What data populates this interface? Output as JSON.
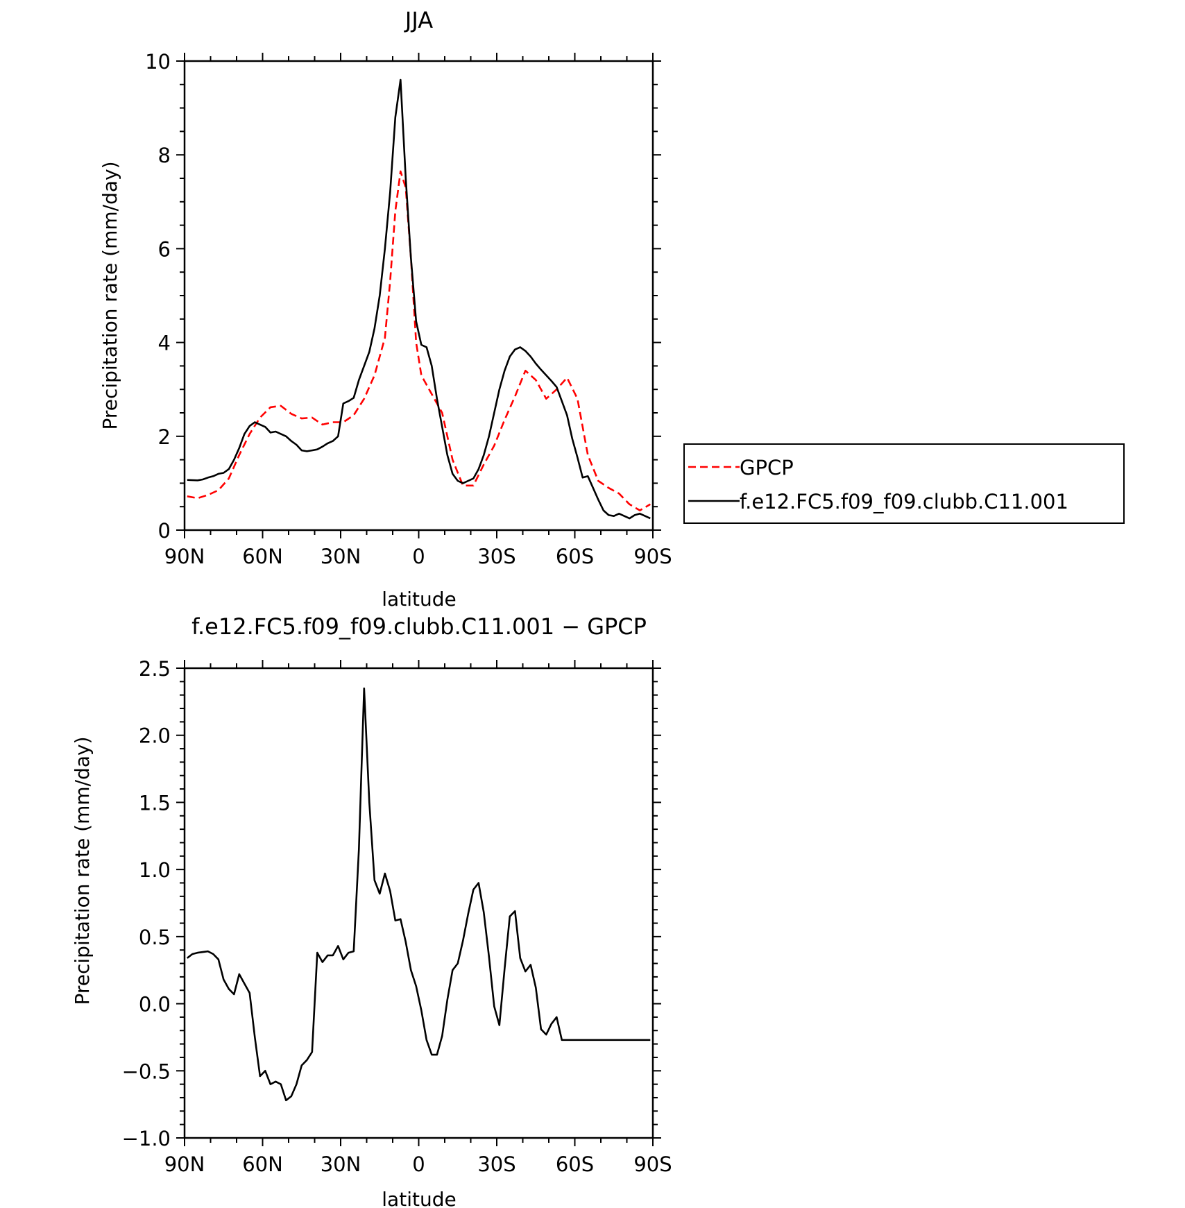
{
  "chart_data": [
    {
      "type": "line",
      "title": "JJA",
      "xlabel": "latitude",
      "ylabel": "Precipitation rate (mm/day)",
      "xlim": [
        -90,
        90
      ],
      "ylim": [
        0,
        10
      ],
      "xticks": [
        {
          "value": -90,
          "label": "90N"
        },
        {
          "value": -60,
          "label": "60N"
        },
        {
          "value": -30,
          "label": "30N"
        },
        {
          "value": 0,
          "label": "0"
        },
        {
          "value": 30,
          "label": "30S"
        },
        {
          "value": 60,
          "label": "60S"
        },
        {
          "value": 90,
          "label": "90S"
        }
      ],
      "yticks": [
        {
          "value": 0,
          "label": "0"
        },
        {
          "value": 2,
          "label": "2"
        },
        {
          "value": 4,
          "label": "4"
        },
        {
          "value": 6,
          "label": "6"
        },
        {
          "value": 8,
          "label": "8"
        },
        {
          "value": 10,
          "label": "10"
        }
      ],
      "grid": false,
      "legend": "right",
      "series": [
        {
          "name": "GPCP",
          "color": "#ff0000",
          "style": "dashed",
          "x": [
            -89,
            -85,
            -81,
            -77,
            -73,
            -69,
            -65,
            -61,
            -57,
            -53,
            -49,
            -45,
            -41,
            -37,
            -33,
            -29,
            -25,
            -21,
            -17,
            -13,
            -11,
            -9,
            -7,
            -5,
            -3,
            -1,
            1,
            5,
            9,
            13,
            17,
            21,
            25,
            29,
            33,
            37,
            41,
            45,
            49,
            53,
            57,
            61,
            65,
            69,
            73,
            77,
            81,
            85,
            89
          ],
          "y": [
            0.72,
            0.68,
            0.75,
            0.85,
            1.1,
            1.6,
            2.05,
            2.4,
            2.62,
            2.65,
            2.48,
            2.38,
            2.4,
            2.25,
            2.3,
            2.3,
            2.45,
            2.8,
            3.3,
            4.1,
            5.3,
            6.8,
            7.65,
            7.3,
            5.8,
            4.0,
            3.3,
            2.9,
            2.5,
            1.5,
            0.95,
            0.95,
            1.4,
            1.8,
            2.35,
            2.85,
            3.4,
            3.2,
            2.8,
            3.0,
            3.25,
            2.8,
            1.6,
            1.05,
            0.9,
            0.78,
            0.55,
            0.42,
            0.55
          ]
        },
        {
          "name": "f.e12.FC5.f09_f09.clubb.C11.001",
          "color": "#000000",
          "style": "solid",
          "x": [
            -89,
            -85,
            -83,
            -81,
            -79,
            -77,
            -75,
            -73,
            -71,
            -69,
            -67,
            -65,
            -63,
            -61,
            -59,
            -57,
            -55,
            -53,
            -51,
            -49,
            -47,
            -45,
            -43,
            -41,
            -39,
            -37,
            -35,
            -33,
            -31,
            -29,
            -27,
            -25,
            -23,
            -21,
            -19,
            -17,
            -15,
            -13,
            -11,
            -9,
            -7,
            -5,
            -3,
            -1,
            1,
            3,
            5,
            7,
            9,
            11,
            13,
            15,
            17,
            19,
            21,
            23,
            25,
            27,
            29,
            31,
            33,
            35,
            37,
            39,
            41,
            43,
            45,
            47,
            49,
            51,
            53,
            55,
            57,
            59,
            61,
            63,
            65,
            67,
            69,
            71,
            73,
            75,
            77,
            79,
            81,
            83,
            85,
            87,
            89
          ],
          "y": [
            1.07,
            1.06,
            1.08,
            1.12,
            1.15,
            1.2,
            1.22,
            1.3,
            1.5,
            1.75,
            2.05,
            2.22,
            2.3,
            2.25,
            2.2,
            2.08,
            2.1,
            2.05,
            2.0,
            1.9,
            1.82,
            1.7,
            1.68,
            1.7,
            1.72,
            1.78,
            1.85,
            1.9,
            2.0,
            2.7,
            2.75,
            2.82,
            3.2,
            3.5,
            3.8,
            4.3,
            5.0,
            6.0,
            7.2,
            8.8,
            9.6,
            7.5,
            5.8,
            4.45,
            3.95,
            3.9,
            3.5,
            2.8,
            2.2,
            1.6,
            1.2,
            1.05,
            1.0,
            1.05,
            1.1,
            1.3,
            1.6,
            2.0,
            2.5,
            3.0,
            3.4,
            3.7,
            3.85,
            3.9,
            3.82,
            3.7,
            3.55,
            3.42,
            3.3,
            3.18,
            3.05,
            2.75,
            2.45,
            1.95,
            1.55,
            1.12,
            1.15,
            0.9,
            0.65,
            0.42,
            0.32,
            0.3,
            0.35,
            0.3,
            0.25,
            0.32,
            0.35,
            0.3,
            0.25
          ]
        }
      ]
    },
    {
      "type": "line",
      "title": "f.e12.FC5.f09_f09.clubb.C11.001 − GPCP",
      "xlabel": "latitude",
      "ylabel": "Precipitation rate (mm/day)",
      "xlim": [
        -90,
        90
      ],
      "ylim": [
        -1.0,
        2.5
      ],
      "xticks": [
        {
          "value": -90,
          "label": "90N"
        },
        {
          "value": -60,
          "label": "60N"
        },
        {
          "value": -30,
          "label": "30N"
        },
        {
          "value": 0,
          "label": "0"
        },
        {
          "value": 30,
          "label": "30S"
        },
        {
          "value": 60,
          "label": "60S"
        },
        {
          "value": 90,
          "label": "90S"
        }
      ],
      "yticks": [
        {
          "value": -1.0,
          "label": "−1.0"
        },
        {
          "value": -0.5,
          "label": "−0.5"
        },
        {
          "value": 0.0,
          "label": "0.0"
        },
        {
          "value": 0.5,
          "label": "0.5"
        },
        {
          "value": 1.0,
          "label": "1.0"
        },
        {
          "value": 1.5,
          "label": "1.5"
        },
        {
          "value": 2.0,
          "label": "2.0"
        },
        {
          "value": 2.5,
          "label": "2.5"
        }
      ],
      "grid": false,
      "series": [
        {
          "color": "#000000",
          "style": "solid",
          "x": [
            -89,
            -87,
            -85,
            -81,
            -79,
            -77,
            -75,
            -73,
            -71,
            -69,
            -67,
            -65,
            -63,
            -61,
            -59,
            -57,
            -55,
            -53,
            -51,
            -49,
            -47,
            -45,
            -43,
            -41,
            -39,
            -37,
            -35,
            -33,
            -31,
            -29,
            -27,
            -25,
            -23,
            -21,
            -19,
            -17,
            -15,
            -13,
            -11,
            -9,
            -7,
            -5,
            -3,
            -1,
            1,
            3,
            5,
            7,
            9,
            11,
            13,
            15,
            17,
            19,
            21,
            23,
            25,
            27,
            29,
            31,
            33,
            35,
            37,
            39,
            41,
            43,
            45,
            47,
            49,
            51,
            53,
            55,
            57,
            59,
            61,
            63,
            65,
            67,
            69,
            71,
            73,
            75,
            77,
            79,
            81,
            83,
            85,
            87,
            89
          ],
          "y": [
            0.34,
            0.37,
            0.38,
            0.39,
            0.37,
            0.33,
            0.18,
            0.11,
            0.07,
            0.22,
            0.15,
            0.08,
            -0.25,
            -0.54,
            -0.5,
            -0.6,
            -0.58,
            -0.6,
            -0.72,
            -0.69,
            -0.6,
            -0.46,
            -0.42,
            -0.36,
            0.38,
            0.31,
            0.36,
            0.36,
            0.43,
            0.33,
            0.38,
            0.39,
            1.15,
            2.35,
            1.5,
            0.92,
            0.82,
            0.97,
            0.84,
            0.62,
            0.63,
            0.46,
            0.25,
            0.13,
            -0.05,
            -0.27,
            -0.38,
            -0.38,
            -0.24,
            0.03,
            0.25,
            0.3,
            0.47,
            0.67,
            0.85,
            0.9,
            0.68,
            0.35,
            -0.02,
            -0.16,
            0.26,
            0.65,
            0.69,
            0.34,
            0.24,
            0.29,
            0.12,
            -0.19,
            -0.23,
            -0.15,
            -0.1,
            -0.27,
            -0.27,
            -0.27,
            -0.27,
            -0.27,
            -0.27,
            -0.27,
            -0.27,
            -0.27,
            -0.27,
            -0.27,
            -0.27,
            -0.27,
            -0.27,
            -0.27,
            -0.27,
            -0.27,
            -0.27
          ]
        }
      ]
    }
  ]
}
